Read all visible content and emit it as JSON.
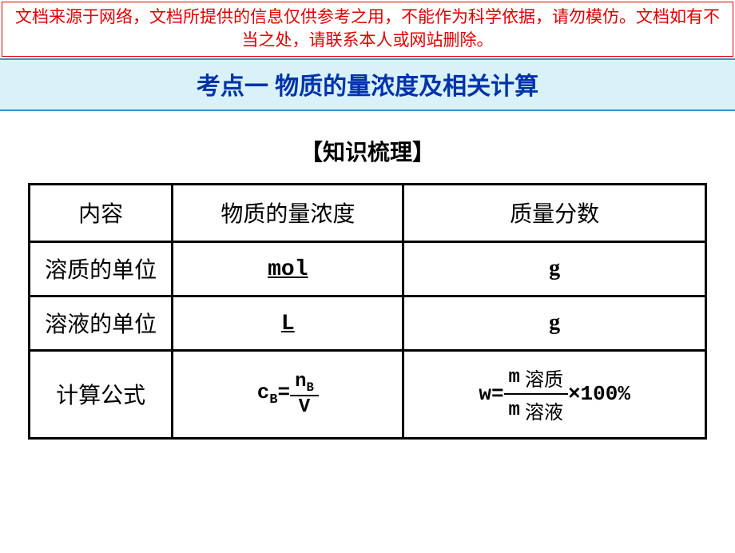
{
  "disclaimer": "文档来源于网络，文档所提供的信息仅供参考之用，不能作为科学依据，请勿模仿。文档如有不当之处，请联系本人或网站删除。",
  "topic": "考点一 物质的量浓度及相关计算",
  "section": "【知识梳理】",
  "table": {
    "headers": [
      "内容",
      "物质的量浓度",
      "质量分数"
    ],
    "rows": [
      {
        "label": "溶质的单位",
        "col2": "mol",
        "col2_underline": true,
        "col3": "g"
      },
      {
        "label": "溶液的单位",
        "col2": "L",
        "col2_underline": true,
        "col3": "g"
      }
    ],
    "formula_row": {
      "label": "计算公式",
      "c_formula": {
        "lhs_base": "c",
        "lhs_sub": "B",
        "num_base": "n",
        "num_sub": "B",
        "den": "V"
      },
      "w_formula": {
        "lhs": "w",
        "m": "m",
        "top_label": "溶质",
        "bot_label": "溶液",
        "tail": "×100%"
      }
    }
  },
  "colors": {
    "disclaimer_border": "#e00000",
    "disclaimer_text": "#e00000",
    "topic_bg": "#d9f2f9",
    "topic_border": "#3399cc",
    "topic_text": "#0033aa",
    "table_border": "#000000",
    "page_bg": "#ffffff"
  }
}
